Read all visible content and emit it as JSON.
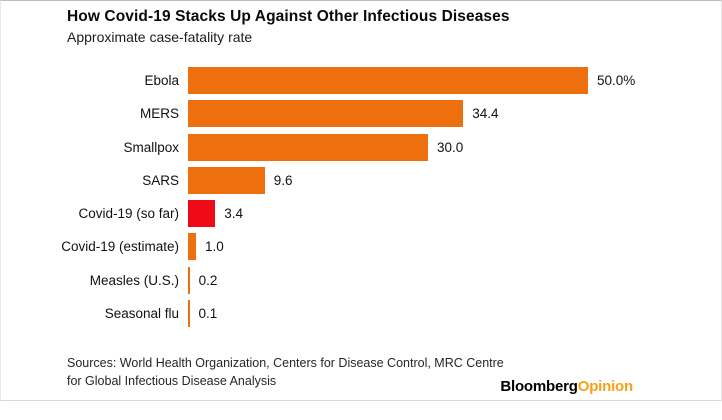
{
  "header": {
    "title": "How Covid-19 Stacks Up Against Other Infectious Diseases",
    "subtitle": "Approximate case-fatality rate"
  },
  "chart_data": {
    "type": "bar",
    "orientation": "horizontal",
    "title": "How Covid-19 Stacks Up Against Other Infectious Diseases",
    "subtitle": "Approximate case-fatality rate",
    "categories": [
      "Ebola",
      "MERS",
      "Smallpox",
      "SARS",
      "Covid-19 (so far)",
      "Covid-19 (estimate)",
      "Measles (U.S.)",
      "Seasonal flu"
    ],
    "values": [
      50.0,
      34.4,
      30.0,
      9.6,
      3.4,
      1.0,
      0.2,
      0.1
    ],
    "value_labels": [
      "50.0%",
      "34.4",
      "30.0",
      "9.6",
      "3.4",
      "1.0",
      "0.2",
      "0.1"
    ],
    "units": "percent",
    "xlim": [
      0,
      50
    ],
    "grid": false,
    "legend": false,
    "highlight_category": "Covid-19 (so far)",
    "bar_colors": [
      "#ee6f0e",
      "#ee6f0e",
      "#ee6f0e",
      "#ee6f0e",
      "#ee0a16",
      "#ee6f0e",
      "#ee6f0e",
      "#ee6f0e"
    ]
  },
  "colors": {
    "bar_orange": "#ee6f0e",
    "bar_red": "#ee0a16",
    "logo_orange": "#f8a01d"
  },
  "footer": {
    "sources_line1": "Sources: World Health Organization, Centers for Disease Control, MRC Centre",
    "sources_line2": "for Global Infectious Disease Analysis",
    "logo_part1": "Bloomberg",
    "logo_part2": "Opinion"
  }
}
